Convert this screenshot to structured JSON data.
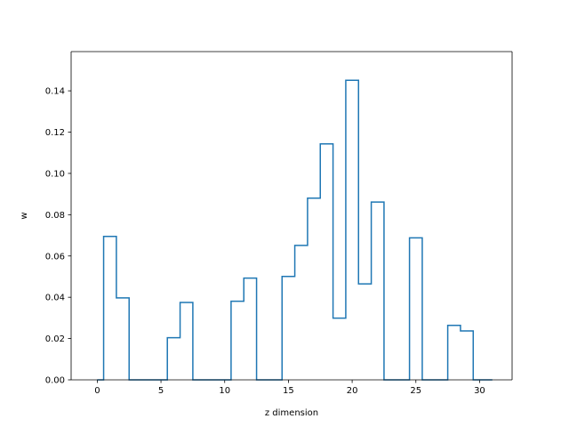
{
  "chart_data": {
    "type": "line",
    "style": "step-histogram",
    "title": "",
    "xlabel": "z dimension",
    "ylabel": "w",
    "xlim": [
      -2.05,
      32.55
    ],
    "ylim": [
      0.0,
      0.159
    ],
    "grid": false,
    "legend": "none",
    "line_color": "#1f77b4",
    "xticks": [
      0,
      5,
      10,
      15,
      20,
      25,
      30
    ],
    "xtick_labels": [
      "0",
      "5",
      "10",
      "15",
      "20",
      "25",
      "30"
    ],
    "yticks": [
      0.0,
      0.02,
      0.04,
      0.06,
      0.08,
      0.1,
      0.12,
      0.14
    ],
    "ytick_labels": [
      "0.00",
      "0.02",
      "0.04",
      "0.06",
      "0.08",
      "0.10",
      "0.12",
      "0.14"
    ],
    "series": [
      {
        "x": [
          0,
          1,
          2,
          3,
          4,
          5,
          6,
          7,
          8,
          9,
          10,
          11,
          12,
          13,
          14,
          15,
          16,
          17,
          18,
          19,
          20,
          21,
          22,
          23,
          24,
          25,
          26,
          27,
          28,
          29,
          30,
          31
        ],
        "values": [
          0.0,
          0.0695,
          0.0397,
          0.0,
          0.0,
          0.0,
          0.0204,
          0.0375,
          0.0,
          0.0,
          0.0,
          0.0381,
          0.0493,
          0.0,
          0.0,
          0.0501,
          0.0651,
          0.088,
          0.1143,
          0.0299,
          0.1451,
          0.0465,
          0.0861,
          0.0,
          0.0,
          0.0688,
          0.0,
          0.0,
          0.0264,
          0.0237,
          0.0,
          0.0
        ]
      }
    ]
  }
}
